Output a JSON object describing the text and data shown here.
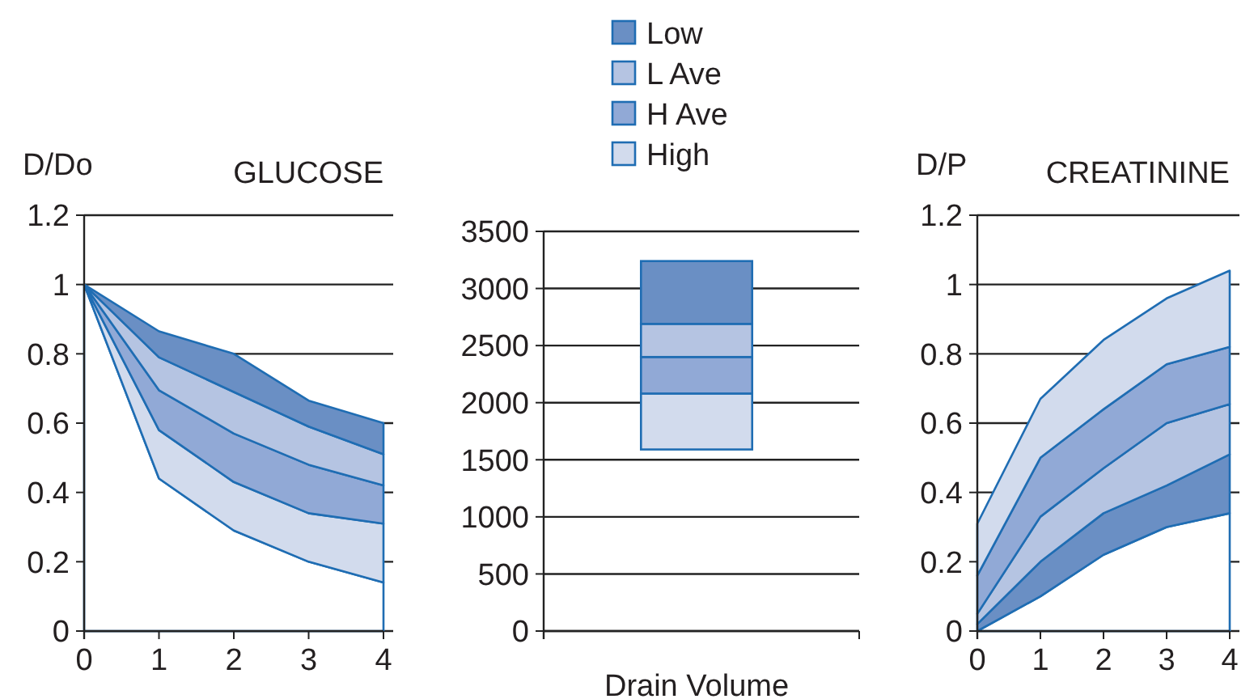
{
  "chart_data": [
    {
      "type": "area",
      "stacked": true,
      "title": "GLUCOSE",
      "ylabel": "D/Do",
      "x": [
        0,
        1,
        2,
        3,
        4
      ],
      "xlim": [
        0,
        4
      ],
      "xticks": [
        0,
        1,
        2,
        3,
        4
      ],
      "ylim": [
        0,
        1.2
      ],
      "yticks": [
        0,
        0.2,
        0.4,
        0.6,
        0.8,
        1,
        1.2
      ],
      "grid": "y",
      "legend": false,
      "series": [
        {
          "color": "#ffffff",
          "values": [
            1,
            0.44,
            0.29,
            0.2,
            0.14
          ]
        },
        {
          "color": "#d2dbed",
          "values": [
            0,
            0.14,
            0.14,
            0.14,
            0.17
          ]
        },
        {
          "color": "#91a9d6",
          "values": [
            0,
            0.115,
            0.14,
            0.14,
            0.11
          ]
        },
        {
          "color": "#b5c4e2",
          "values": [
            0,
            0.095,
            0.12,
            0.11,
            0.09
          ]
        },
        {
          "color": "#6a8fc4",
          "values": [
            0,
            0.075,
            0.11,
            0.075,
            0.09
          ]
        }
      ]
    },
    {
      "type": "bar",
      "xlabel": "Drain Volume",
      "categories": [
        null
      ],
      "ylim": [
        0,
        3500
      ],
      "yticks": [
        0,
        500,
        1000,
        1500,
        2000,
        2500,
        3000,
        3500
      ],
      "grid": "y",
      "legend": "top",
      "series": [
        {
          "name": "High",
          "color": "#d2dbed",
          "values": [
            490
          ],
          "base": [
            1590
          ]
        },
        {
          "name": "H Ave",
          "color": "#91a9d6",
          "values": [
            320
          ],
          "base": [
            2080
          ]
        },
        {
          "name": "L Ave",
          "color": "#b5c4e2",
          "values": [
            290
          ],
          "base": [
            2400
          ]
        },
        {
          "name": "Low",
          "color": "#6a8fc4",
          "values": [
            550
          ],
          "base": [
            2690
          ]
        }
      ]
    },
    {
      "type": "area",
      "stacked": true,
      "title": "CREATININE",
      "ylabel": "D/P",
      "x": [
        0,
        1,
        2,
        3,
        4
      ],
      "xlim": [
        0,
        4
      ],
      "xticks": [
        0,
        1,
        2,
        3,
        4
      ],
      "ylim": [
        0,
        1.2
      ],
      "yticks": [
        0,
        0.2,
        0.4,
        0.6,
        0.8,
        1,
        1.2
      ],
      "grid": "y",
      "legend": false,
      "series": [
        {
          "color": "#ffffff",
          "values": [
            0,
            0.1,
            0.22,
            0.3,
            0.34
          ]
        },
        {
          "color": "#6a8fc4",
          "values": [
            0.02,
            0.1,
            0.12,
            0.12,
            0.17
          ]
        },
        {
          "color": "#b5c4e2",
          "values": [
            0.03,
            0.13,
            0.13,
            0.18,
            0.145
          ]
        },
        {
          "color": "#91a9d6",
          "values": [
            0.11,
            0.17,
            0.17,
            0.17,
            0.165
          ]
        },
        {
          "color": "#d2dbed",
          "values": [
            0.15,
            0.17,
            0.2,
            0.19,
            0.22
          ]
        }
      ]
    }
  ]
}
